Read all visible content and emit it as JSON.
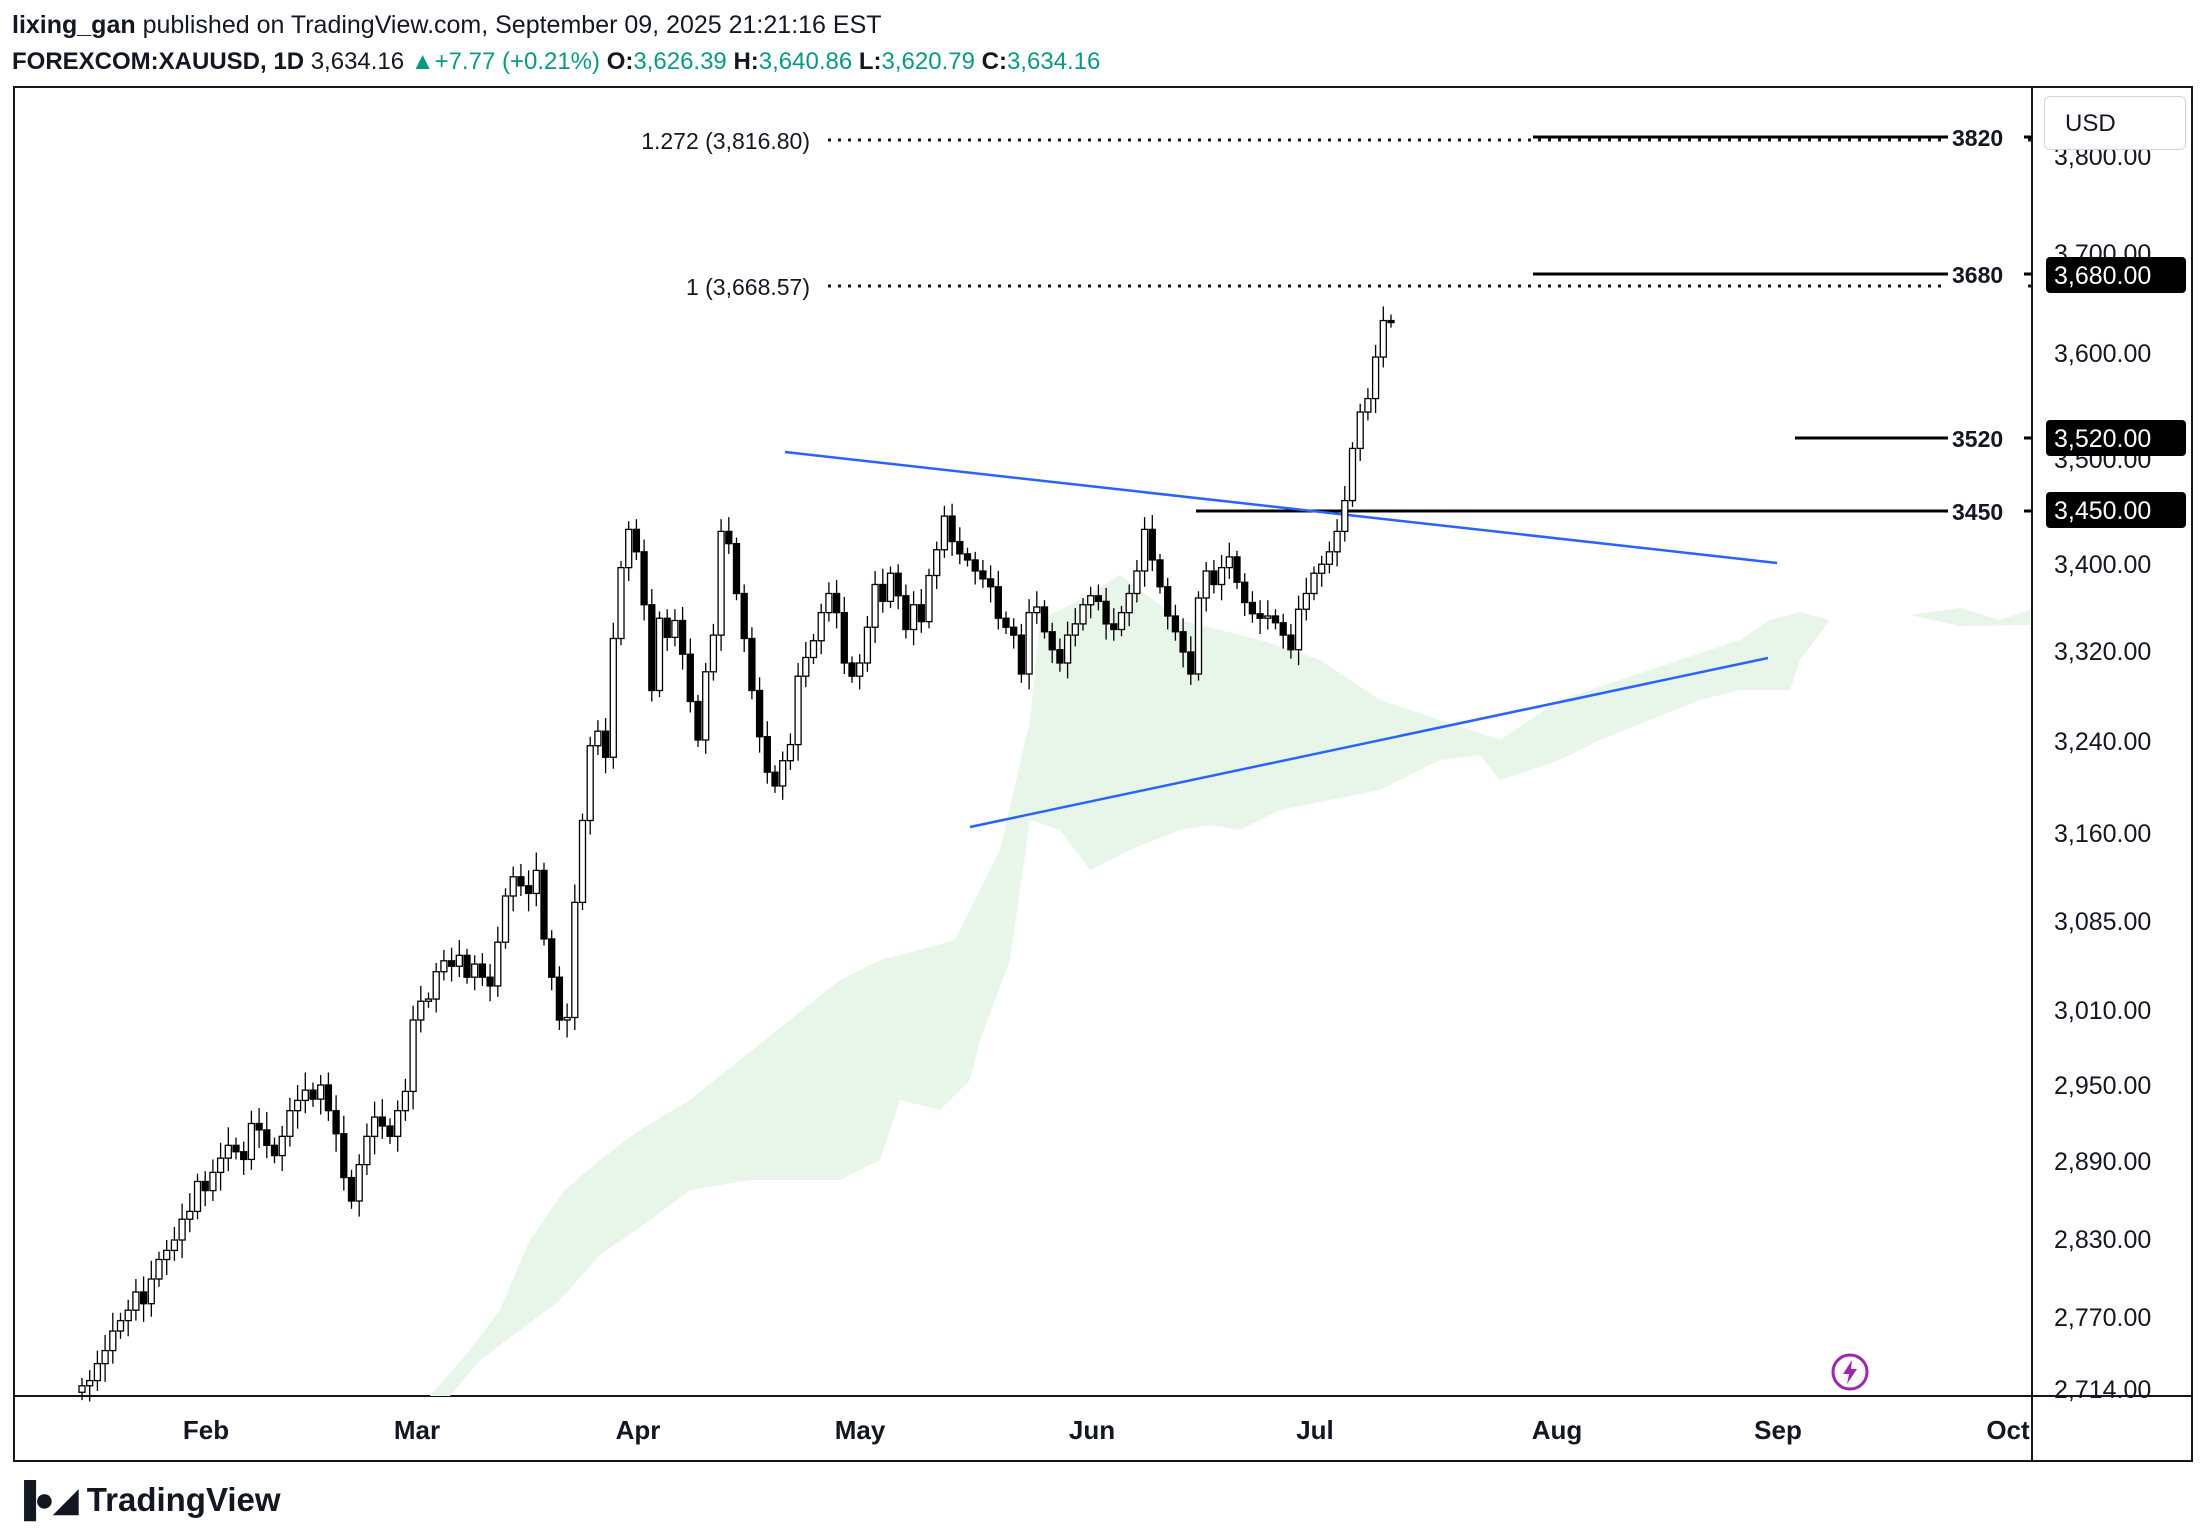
{
  "header": {
    "publisher": "lixing_gan",
    "published_text": "published on TradingView.com, September 09, 2025 21:21:16 EST",
    "symbol": "FOREXCOM:XAUUSD, 1D",
    "last_price": "3,634.16",
    "change": "+7.77 (+0.21%)",
    "o_label": "O:",
    "o_value": "3,626.39",
    "h_label": "H:",
    "h_value": "3,640.86",
    "l_label": "L:",
    "l_value": "3,620.79",
    "c_label": "C:",
    "c_value": "3,634.16"
  },
  "currency": "USD",
  "footer": {
    "brand": "TradingView"
  },
  "colors": {
    "trendline": "#2962ff",
    "cloud": "#e8f5e9",
    "candle_up": "#ffffff",
    "candle_down": "#000000",
    "badge": "#000000"
  },
  "chart_data": {
    "type": "candlestick",
    "symbol": "FOREXCOM:XAUUSD",
    "timeframe": "1D",
    "x_labels": [
      "Feb",
      "Mar",
      "Apr",
      "May",
      "Jun",
      "Jul",
      "Aug",
      "Sep",
      "Oct"
    ],
    "y_ticks": [
      "3,800.00",
      "3,700.00",
      "3,600.00",
      "3,500.00",
      "3,400.00",
      "3,320.00",
      "3,240.00",
      "3,160.00",
      "3,085.00",
      "3,010.00",
      "2,950.00",
      "2,890.00",
      "2,830.00",
      "2,770.00",
      "2,714.00"
    ],
    "levels": [
      {
        "label": "3820",
        "value": 3820
      },
      {
        "label": "3680",
        "value": 3680,
        "badge": "3,680.00"
      },
      {
        "label": "3520",
        "value": 3520,
        "badge": "3,520.00"
      },
      {
        "label": "3450",
        "value": 3450,
        "badge": "3,450.00"
      }
    ],
    "fibonacci": [
      {
        "label": "1.272 (3,816.80)",
        "value": 3816.8
      },
      {
        "label": "1 (3,668.57)",
        "value": 3668.57
      }
    ],
    "close_series": [
      2718,
      2722,
      2735,
      2745,
      2760,
      2768,
      2776,
      2790,
      2781,
      2800,
      2815,
      2822,
      2830,
      2846,
      2852,
      2875,
      2868,
      2882,
      2893,
      2903,
      2898,
      2892,
      2920,
      2915,
      2903,
      2895,
      2910,
      2930,
      2938,
      2946,
      2939,
      2950,
      2930,
      2912,
      2878,
      2860,
      2888,
      2910,
      2925,
      2918,
      2910,
      2930,
      2945,
      3002,
      3018,
      3020,
      3045,
      3055,
      3050,
      3060,
      3040,
      3052,
      3040,
      3032,
      3072,
      3110,
      3125,
      3118,
      3112,
      3130,
      3075,
      3040,
      3002,
      3004,
      3105,
      3170,
      3235,
      3248,
      3225,
      3332,
      3395,
      3432,
      3410,
      3362,
      3285,
      3350,
      3333,
      3348,
      3318,
      3275,
      3240,
      3302,
      3335,
      3430,
      3418,
      3372,
      3332,
      3285,
      3243,
      3212,
      3200,
      3222,
      3236,
      3298,
      3315,
      3330,
      3355,
      3372,
      3355,
      3310,
      3298,
      3310,
      3342,
      3380,
      3365,
      3390,
      3370,
      3340,
      3362,
      3347,
      3388,
      3412,
      3445,
      3420,
      3408,
      3402,
      3392,
      3385,
      3378,
      3350,
      3342,
      3335,
      3300,
      3355,
      3360,
      3338,
      3322,
      3310,
      3335,
      3345,
      3362,
      3370,
      3365,
      3345,
      3340,
      3355,
      3372,
      3392,
      3432,
      3402,
      3378,
      3352,
      3338,
      3320,
      3300,
      3368,
      3392,
      3380,
      3395,
      3405,
      3382,
      3364,
      3354,
      3350,
      3352,
      3346,
      3335,
      3322,
      3358,
      3372,
      3390,
      3398,
      3410,
      3430,
      3460,
      3510,
      3545,
      3558,
      3598,
      3634,
      3633
    ]
  }
}
